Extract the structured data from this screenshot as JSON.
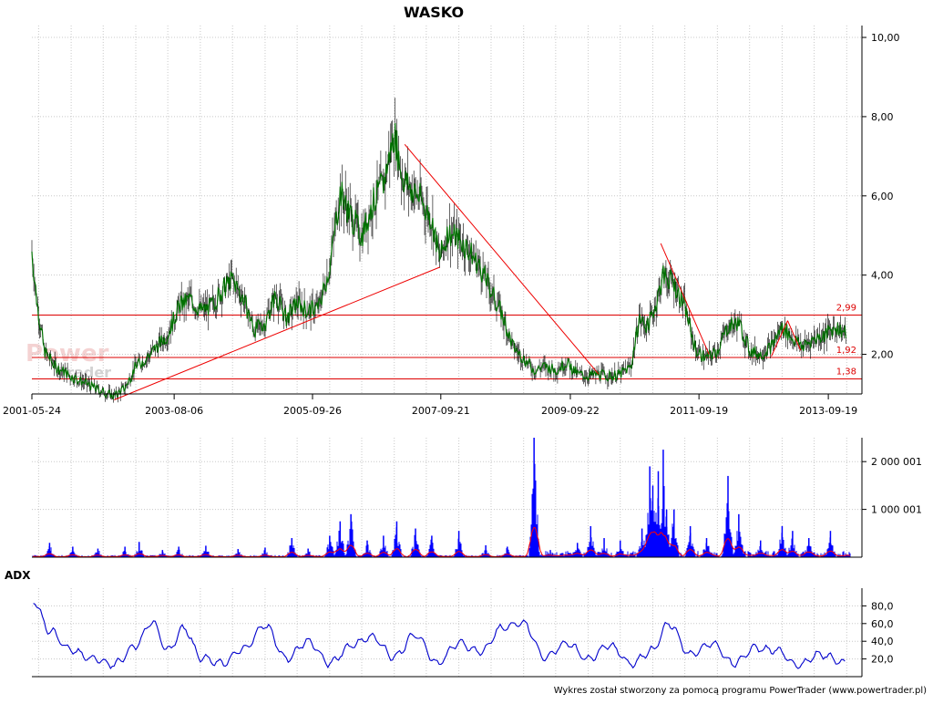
{
  "chart_data": [
    {
      "type": "candlestick",
      "title": "WASKO",
      "ylim": [
        1,
        10.3
      ],
      "y_ticks": [
        2,
        4,
        6,
        8,
        10
      ],
      "y_tick_labels": [
        "2,00",
        "4,00",
        "6,00",
        "8,00",
        "10,00"
      ],
      "x_ticks": [
        "2001-05-24",
        "2003-08-06",
        "2005-09-26",
        "2007-09-21",
        "2009-09-22",
        "2011-09-19",
        "2013-09-19"
      ],
      "x_range": [
        "2001-05-24",
        "2014-01-20"
      ],
      "grid": true,
      "price_series": {
        "name": "close",
        "color": "#007000",
        "points": [
          [
            "2001-05-24",
            4.6
          ],
          [
            "2001-06-20",
            3.4
          ],
          [
            "2001-08-01",
            2.1
          ],
          [
            "2001-10-01",
            1.7
          ],
          [
            "2002-01-01",
            1.45
          ],
          [
            "2002-04-01",
            1.25
          ],
          [
            "2002-07-01",
            1.05
          ],
          [
            "2002-09-01",
            0.95
          ],
          [
            "2002-11-01",
            1.15
          ],
          [
            "2003-01-01",
            1.7
          ],
          [
            "2003-03-01",
            1.9
          ],
          [
            "2003-05-01",
            2.2
          ],
          [
            "2003-07-01",
            2.5
          ],
          [
            "2003-09-01",
            3.2
          ],
          [
            "2003-11-01",
            3.4
          ],
          [
            "2004-01-01",
            3.1
          ],
          [
            "2004-03-01",
            3.2
          ],
          [
            "2004-05-01",
            3.6
          ],
          [
            "2004-07-01",
            3.9
          ],
          [
            "2004-09-01",
            3.4
          ],
          [
            "2004-11-01",
            2.6
          ],
          [
            "2005-01-01",
            2.8
          ],
          [
            "2005-03-01",
            3.5
          ],
          [
            "2005-05-01",
            2.9
          ],
          [
            "2005-07-01",
            3.3
          ],
          [
            "2005-09-01",
            3.1
          ],
          [
            "2005-11-01",
            3.2
          ],
          [
            "2006-01-01",
            4.2
          ],
          [
            "2006-03-01",
            6.1
          ],
          [
            "2006-05-01",
            5.5
          ],
          [
            "2006-07-01",
            5.0
          ],
          [
            "2006-09-01",
            5.8
          ],
          [
            "2006-11-01",
            6.3
          ],
          [
            "2007-01-01",
            7.6
          ],
          [
            "2007-02-15",
            6.5
          ],
          [
            "2007-04-01",
            6.2
          ],
          [
            "2007-06-01",
            5.9
          ],
          [
            "2007-08-01",
            5.4
          ],
          [
            "2007-09-15",
            4.4
          ],
          [
            "2007-11-01",
            5.1
          ],
          [
            "2008-01-01",
            4.9
          ],
          [
            "2008-03-01",
            4.6
          ],
          [
            "2008-05-01",
            4.2
          ],
          [
            "2008-07-01",
            3.6
          ],
          [
            "2008-09-01",
            3.0
          ],
          [
            "2008-11-01",
            2.2
          ],
          [
            "2009-01-01",
            1.9
          ],
          [
            "2009-03-01",
            1.6
          ],
          [
            "2009-05-01",
            1.7
          ],
          [
            "2009-07-01",
            1.6
          ],
          [
            "2009-09-01",
            1.8
          ],
          [
            "2009-11-01",
            1.5
          ],
          [
            "2010-01-01",
            1.45
          ],
          [
            "2010-03-01",
            1.5
          ],
          [
            "2010-05-01",
            1.45
          ],
          [
            "2010-07-01",
            1.5
          ],
          [
            "2010-09-01",
            1.7
          ],
          [
            "2010-10-15",
            2.9
          ],
          [
            "2010-12-01",
            2.7
          ],
          [
            "2011-01-15",
            3.2
          ],
          [
            "2011-03-01",
            4.0
          ],
          [
            "2011-05-01",
            3.8
          ],
          [
            "2011-07-01",
            3.2
          ],
          [
            "2011-09-01",
            2.1
          ],
          [
            "2011-11-01",
            1.9
          ],
          [
            "2012-01-01",
            2.1
          ],
          [
            "2012-03-01",
            2.7
          ],
          [
            "2012-05-01",
            2.8
          ],
          [
            "2012-07-01",
            2.1
          ],
          [
            "2012-09-01",
            2.0
          ],
          [
            "2012-11-01",
            2.2
          ],
          [
            "2013-01-01",
            2.7
          ],
          [
            "2013-03-01",
            2.4
          ],
          [
            "2013-05-01",
            2.2
          ],
          [
            "2013-07-01",
            2.4
          ],
          [
            "2013-09-01",
            2.5
          ],
          [
            "2013-11-01",
            2.7
          ],
          [
            "2014-01-01",
            2.5
          ]
        ]
      },
      "trend_lines": [
        {
          "from": [
            "2002-09-01",
            0.85
          ],
          "to": [
            "2007-09-15",
            4.2
          ]
        },
        {
          "from": [
            "2007-03-01",
            7.3
          ],
          "to": [
            "2010-03-01",
            1.5
          ]
        },
        {
          "from": [
            "2011-02-15",
            4.8
          ],
          "to": [
            "2011-11-15",
            2.0
          ]
        },
        {
          "from": [
            "2012-11-01",
            1.95
          ],
          "to": [
            "2013-02-01",
            2.85
          ]
        },
        {
          "from": [
            "2013-02-01",
            2.85
          ],
          "to": [
            "2013-04-15",
            2.1
          ]
        }
      ],
      "horizontal_levels": [
        {
          "value": 2.99,
          "label": "2,99"
        },
        {
          "value": 1.92,
          "label": "1,92"
        },
        {
          "value": 1.38,
          "label": "1,38"
        }
      ],
      "annotations": [
        "2,99",
        "1,92",
        "1,38"
      ],
      "watermark": "PowerTrader"
    },
    {
      "type": "bar",
      "name": "volume",
      "ylim": [
        0,
        2500000
      ],
      "y_ticks": [
        1000001,
        2000001
      ],
      "y_tick_labels": [
        "1 000 001",
        "2 000 001"
      ],
      "bar_color": "#0000ff",
      "line_color": "#ff0000",
      "spikes": [
        [
          "2001-09-01",
          300000
        ],
        [
          "2002-01-10",
          220000
        ],
        [
          "2002-06-01",
          180000
        ],
        [
          "2002-11-01",
          220000
        ],
        [
          "2003-01-20",
          320000
        ],
        [
          "2003-06-01",
          150000
        ],
        [
          "2003-09-01",
          220000
        ],
        [
          "2004-02-01",
          240000
        ],
        [
          "2004-08-01",
          170000
        ],
        [
          "2005-01-01",
          200000
        ],
        [
          "2005-06-01",
          400000
        ],
        [
          "2005-09-01",
          180000
        ],
        [
          "2006-01-01",
          450000
        ],
        [
          "2006-03-01",
          750000
        ],
        [
          "2006-05-01",
          900000
        ],
        [
          "2006-08-01",
          350000
        ],
        [
          "2006-11-01",
          450000
        ],
        [
          "2007-01-15",
          750000
        ],
        [
          "2007-05-01",
          600000
        ],
        [
          "2007-08-01",
          450000
        ],
        [
          "2008-01-01",
          550000
        ],
        [
          "2008-06-01",
          250000
        ],
        [
          "2008-10-01",
          220000
        ],
        [
          "2009-03-01",
          2500000
        ],
        [
          "2009-06-01",
          150000
        ],
        [
          "2009-11-01",
          300000
        ],
        [
          "2010-01-15",
          650000
        ],
        [
          "2010-04-01",
          400000
        ],
        [
          "2010-07-01",
          350000
        ],
        [
          "2010-11-01",
          600000
        ],
        [
          "2010-12-15",
          1900000
        ],
        [
          "2011-01-01",
          1500000
        ],
        [
          "2011-02-01",
          1800000
        ],
        [
          "2011-03-01",
          2250000
        ],
        [
          "2011-03-20",
          1000000
        ],
        [
          "2011-05-01",
          1000000
        ],
        [
          "2011-08-01",
          650000
        ],
        [
          "2011-11-01",
          400000
        ],
        [
          "2012-03-01",
          1700000
        ],
        [
          "2012-05-01",
          900000
        ],
        [
          "2012-09-01",
          350000
        ],
        [
          "2013-01-01",
          650000
        ],
        [
          "2013-03-01",
          550000
        ],
        [
          "2013-06-01",
          400000
        ],
        [
          "2013-10-01",
          550000
        ]
      ]
    },
    {
      "type": "line",
      "title": "ADX",
      "ylim": [
        0,
        100
      ],
      "y_ticks": [
        20,
        40,
        60,
        80
      ],
      "y_tick_labels": [
        "20,0",
        "40,0",
        "60,0",
        "80,0"
      ],
      "series": [
        {
          "color": "#0000cc",
          "points": [
            [
              "2001-06-01",
              86
            ],
            [
              "2001-09-01",
              52
            ],
            [
              "2002-01-01",
              30
            ],
            [
              "2002-05-01",
              20
            ],
            [
              "2002-09-01",
              14
            ],
            [
              "2003-01-01",
              35
            ],
            [
              "2003-04-01",
              62
            ],
            [
              "2003-07-01",
              30
            ],
            [
              "2003-10-01",
              55
            ],
            [
              "2004-01-01",
              22
            ],
            [
              "2004-05-01",
              15
            ],
            [
              "2004-09-01",
              32
            ],
            [
              "2005-01-01",
              58
            ],
            [
              "2005-05-01",
              20
            ],
            [
              "2005-09-01",
              40
            ],
            [
              "2006-01-01",
              15
            ],
            [
              "2006-05-01",
              35
            ],
            [
              "2006-09-01",
              45
            ],
            [
              "2007-01-01",
              22
            ],
            [
              "2007-05-01",
              48
            ],
            [
              "2007-09-01",
              15
            ],
            [
              "2008-01-01",
              38
            ],
            [
              "2008-05-01",
              28
            ],
            [
              "2008-09-01",
              55
            ],
            [
              "2009-01-01",
              60
            ],
            [
              "2009-05-01",
              22
            ],
            [
              "2009-09-01",
              38
            ],
            [
              "2010-01-01",
              20
            ],
            [
              "2010-05-01",
              35
            ],
            [
              "2010-09-01",
              15
            ],
            [
              "2011-01-01",
              30
            ],
            [
              "2011-04-01",
              60
            ],
            [
              "2011-08-01",
              25
            ],
            [
              "2011-12-01",
              38
            ],
            [
              "2012-04-01",
              15
            ],
            [
              "2012-08-01",
              32
            ],
            [
              "2012-12-01",
              30
            ],
            [
              "2013-04-01",
              12
            ],
            [
              "2013-08-01",
              25
            ],
            [
              "2014-01-01",
              15
            ]
          ]
        }
      ]
    }
  ],
  "footer": "Wykres został stworzony za pomocą programu PowerTrader (www.powertrader.pl)",
  "watermark_lines": [
    "Power",
    "Trader"
  ]
}
